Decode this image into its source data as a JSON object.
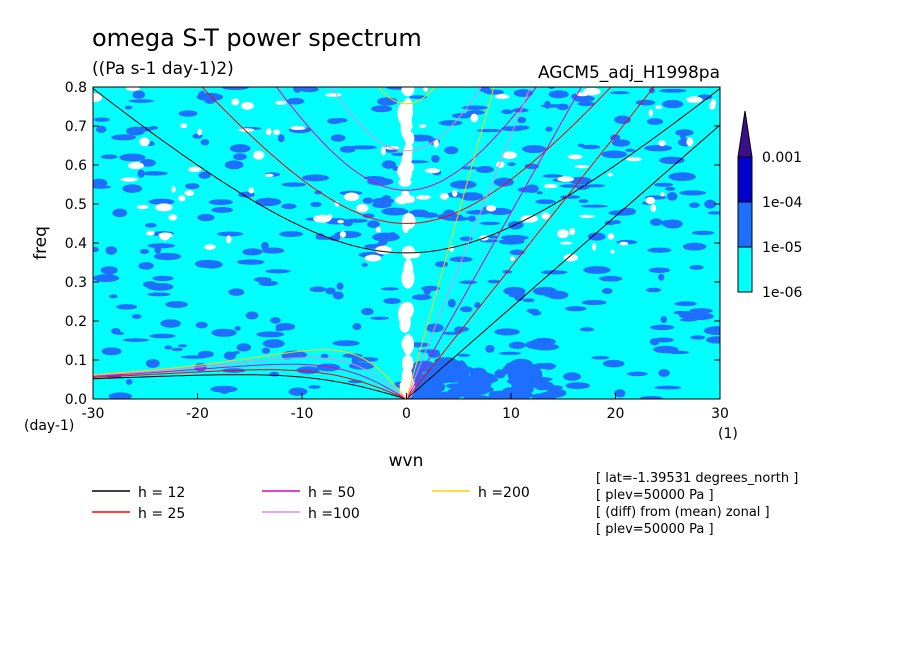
{
  "chart_data": {
    "type": "heatmap",
    "title": "omega S-T power spectrum",
    "subtitle": "((Pa s-1 day-1)2)",
    "dataset_label": "AGCM5_adj_H1998pa",
    "xlabel": "wvn",
    "ylabel": "freq",
    "x_unit": "(1)",
    "y_unit": "(day-1)",
    "xlim": [
      -30,
      30
    ],
    "ylim": [
      0,
      0.8
    ],
    "x_ticks": [
      "-30",
      "-20",
      "-10",
      "0",
      "10",
      "20",
      "30"
    ],
    "y_ticks": [
      "0.0",
      "0.1",
      "0.2",
      "0.3",
      "0.4",
      "0.5",
      "0.6",
      "0.7",
      "0.8"
    ],
    "colorbar": {
      "levels": [
        "1e-06",
        "1e-05",
        "1e-04",
        "0.001"
      ],
      "colors": [
        "#00ffff",
        "#1e6fff",
        "#0000cc",
        "#3b0f8c"
      ],
      "below_color": "#ffffff"
    },
    "dispersion_curves": [
      {
        "label": "h = 12",
        "h": 12,
        "color": "#000000"
      },
      {
        "label": "h = 25",
        "h": 25,
        "color": "#ff0000"
      },
      {
        "label": "h = 50",
        "h": 50,
        "color": "#e000c0"
      },
      {
        "label": "h =100",
        "h": 100,
        "color": "#e08ce0"
      },
      {
        "label": "h =200",
        "h": 200,
        "color": "#ffd200"
      }
    ],
    "info_lines": [
      "[ lat=-1.39531 degrees_north ]",
      "[ plev=50000 Pa ]",
      "[ (diff) from (mean) zonal ]",
      "[ plev=50000 Pa ]"
    ]
  }
}
